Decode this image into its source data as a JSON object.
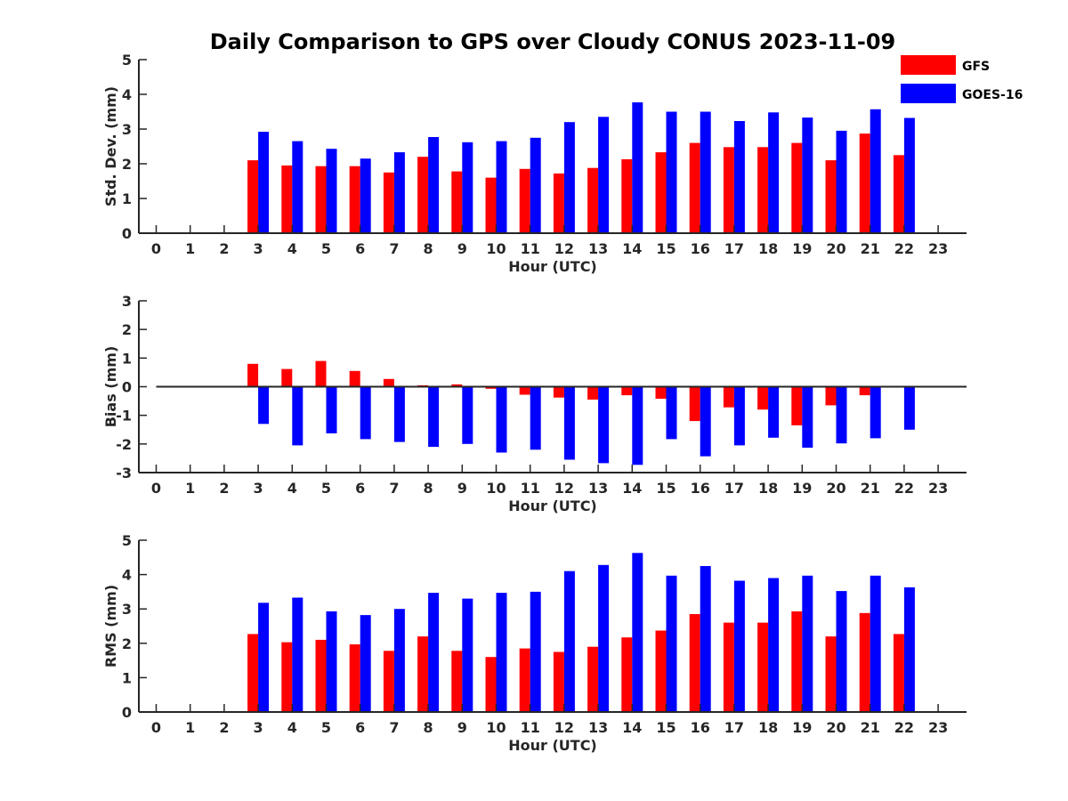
{
  "title": "Daily Comparison to GPS over Cloudy CONUS 2023-11-09",
  "colors": {
    "GFS": "#ff0000",
    "GOES-16": "#0000ff"
  },
  "legend": {
    "items": [
      "GFS",
      "GOES-16"
    ],
    "placement": "top-right"
  },
  "chart_data": [
    {
      "type": "bar",
      "xlabel": "Hour (UTC)",
      "ylabel": "Std. Dev. (mm)",
      "ylim": [
        0,
        5
      ],
      "yticks": [
        0,
        1,
        2,
        3,
        4,
        5
      ],
      "categories": [
        "0",
        "1",
        "2",
        "3",
        "4",
        "5",
        "6",
        "7",
        "8",
        "9",
        "10",
        "11",
        "12",
        "13",
        "14",
        "15",
        "16",
        "17",
        "18",
        "19",
        "20",
        "21",
        "22",
        "23"
      ],
      "series": [
        {
          "name": "GFS",
          "values": [
            null,
            null,
            null,
            2.1,
            1.95,
            1.93,
            1.93,
            1.75,
            2.2,
            1.78,
            1.6,
            1.85,
            1.72,
            1.88,
            2.13,
            2.33,
            2.6,
            2.48,
            2.48,
            2.6,
            2.1,
            2.87,
            2.25,
            null
          ]
        },
        {
          "name": "GOES-16",
          "values": [
            null,
            null,
            null,
            2.92,
            2.65,
            2.43,
            2.15,
            2.33,
            2.77,
            2.62,
            2.65,
            2.75,
            3.2,
            3.35,
            3.77,
            3.5,
            3.5,
            3.23,
            3.48,
            3.33,
            2.95,
            3.57,
            3.32,
            null
          ]
        }
      ]
    },
    {
      "type": "bar",
      "xlabel": "Hour (UTC)",
      "ylabel": "Bias (mm)",
      "ylim": [
        -3,
        3
      ],
      "yticks": [
        -3,
        -2,
        -1,
        0,
        1,
        2,
        3
      ],
      "categories": [
        "0",
        "1",
        "2",
        "3",
        "4",
        "5",
        "6",
        "7",
        "8",
        "9",
        "10",
        "11",
        "12",
        "13",
        "14",
        "15",
        "16",
        "17",
        "18",
        "19",
        "20",
        "21",
        "22",
        "23"
      ],
      "series": [
        {
          "name": "GFS",
          "values": [
            null,
            null,
            null,
            0.8,
            0.62,
            0.9,
            0.55,
            0.27,
            0.05,
            0.08,
            -0.07,
            -0.28,
            -0.38,
            -0.45,
            -0.3,
            -0.42,
            -1.2,
            -0.72,
            -0.8,
            -1.35,
            -0.65,
            -0.3,
            0.0,
            null
          ]
        },
        {
          "name": "GOES-16",
          "values": [
            null,
            null,
            null,
            -1.3,
            -2.05,
            -1.63,
            -1.83,
            -1.93,
            -2.1,
            -2.0,
            -2.3,
            -2.2,
            -2.55,
            -2.67,
            -2.73,
            -1.83,
            -2.43,
            -2.05,
            -1.78,
            -2.13,
            -1.98,
            -1.8,
            -1.5,
            null
          ]
        }
      ]
    },
    {
      "type": "bar",
      "xlabel": "Hour (UTC)",
      "ylabel": "RMS (mm)",
      "ylim": [
        0,
        5
      ],
      "yticks": [
        0,
        1,
        2,
        3,
        4,
        5
      ],
      "categories": [
        "0",
        "1",
        "2",
        "3",
        "4",
        "5",
        "6",
        "7",
        "8",
        "9",
        "10",
        "11",
        "12",
        "13",
        "14",
        "15",
        "16",
        "17",
        "18",
        "19",
        "20",
        "21",
        "22",
        "23"
      ],
      "series": [
        {
          "name": "GFS",
          "values": [
            null,
            null,
            null,
            2.27,
            2.03,
            2.1,
            1.97,
            1.78,
            2.2,
            1.78,
            1.6,
            1.85,
            1.75,
            1.9,
            2.17,
            2.37,
            2.85,
            2.6,
            2.6,
            2.93,
            2.2,
            2.88,
            2.27,
            null
          ]
        },
        {
          "name": "GOES-16",
          "values": [
            null,
            null,
            null,
            3.18,
            3.33,
            2.93,
            2.82,
            3.0,
            3.47,
            3.3,
            3.47,
            3.5,
            4.1,
            4.28,
            4.63,
            3.97,
            4.25,
            3.82,
            3.9,
            3.97,
            3.52,
            3.97,
            3.63,
            null
          ]
        }
      ]
    }
  ]
}
